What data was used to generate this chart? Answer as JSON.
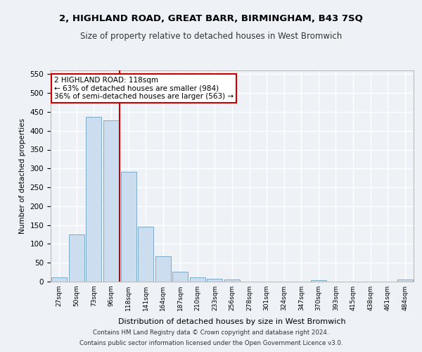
{
  "title": "2, HIGHLAND ROAD, GREAT BARR, BIRMINGHAM, B43 7SQ",
  "subtitle": "Size of property relative to detached houses in West Bromwich",
  "xlabel": "Distribution of detached houses by size in West Bromwich",
  "ylabel": "Number of detached properties",
  "bar_color": "#ccddef",
  "bar_edge_color": "#7aaac8",
  "vline_color": "#cc0000",
  "vline_idx": 4,
  "categories": [
    "27sqm",
    "50sqm",
    "73sqm",
    "96sqm",
    "118sqm",
    "141sqm",
    "164sqm",
    "187sqm",
    "210sqm",
    "233sqm",
    "256sqm",
    "278sqm",
    "301sqm",
    "324sqm",
    "347sqm",
    "370sqm",
    "393sqm",
    "415sqm",
    "438sqm",
    "461sqm",
    "484sqm"
  ],
  "values": [
    12,
    125,
    437,
    427,
    291,
    145,
    68,
    27,
    11,
    8,
    5,
    0,
    0,
    0,
    0,
    4,
    0,
    0,
    0,
    0,
    6
  ],
  "ylim": [
    0,
    560
  ],
  "yticks": [
    0,
    50,
    100,
    150,
    200,
    250,
    300,
    350,
    400,
    450,
    500,
    550
  ],
  "property_label": "2 HIGHLAND ROAD: 118sqm",
  "annotation_line1": "← 63% of detached houses are smaller (984)",
  "annotation_line2": "36% of semi-detached houses are larger (563) →",
  "footnote1": "Contains HM Land Registry data © Crown copyright and database right 2024.",
  "footnote2": "Contains public sector information licensed under the Open Government Licence v3.0.",
  "bg_color": "#eef2f7",
  "grid_color": "#ffffff",
  "annotation_box_color": "#ffffff",
  "annotation_box_edge": "#cc0000"
}
